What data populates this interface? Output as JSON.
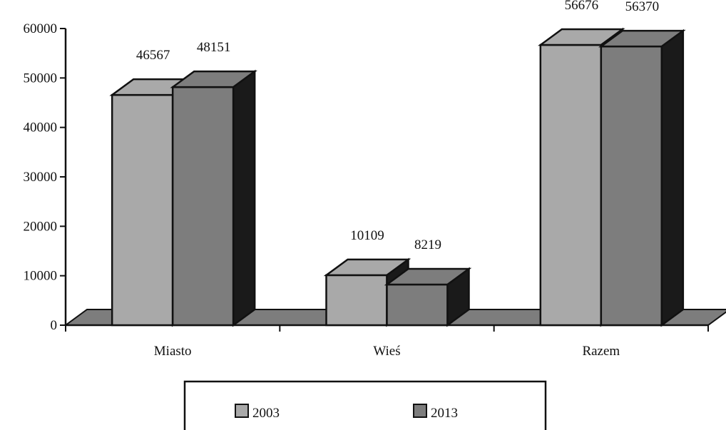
{
  "chart_data": {
    "type": "bar",
    "style": "3d-clustered",
    "categories": [
      "Miasto",
      "Wieś",
      "Razem"
    ],
    "series": [
      {
        "name": "2003",
        "values": [
          46567,
          10109,
          56676
        ],
        "color": "#a9a9a9"
      },
      {
        "name": "2013",
        "values": [
          48151,
          8219,
          56370
        ],
        "color": "#7d7d7d"
      }
    ],
    "ylim": [
      0,
      60000
    ],
    "yticks": [
      "0",
      "10000",
      "20000",
      "30000",
      "40000",
      "50000",
      "60000"
    ],
    "xlabel": "",
    "ylabel": "",
    "grid": false,
    "legend_position": "bottom",
    "colors": {
      "floor": "#7d7d7d",
      "side": "#1a1a1a",
      "outline": "#111111"
    }
  }
}
